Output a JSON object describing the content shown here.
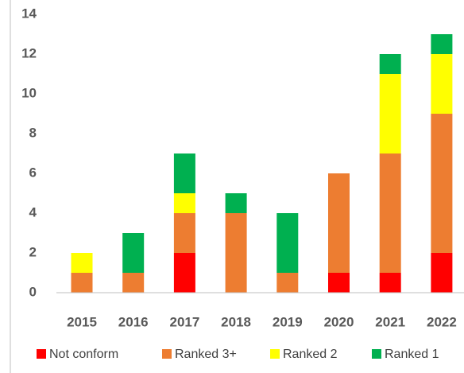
{
  "chart_data": {
    "type": "stacked_bar",
    "categories": [
      "2015",
      "2016",
      "2017",
      "2018",
      "2019",
      "2020",
      "2021",
      "2022"
    ],
    "series": [
      {
        "name": "Not conform",
        "color": "#ff0000",
        "values": [
          0,
          0,
          2,
          0,
          0,
          1,
          1,
          2
        ]
      },
      {
        "name": "Ranked 3+",
        "color": "#ed7d31",
        "values": [
          1,
          1,
          2,
          4,
          1,
          5,
          6,
          7
        ]
      },
      {
        "name": "Ranked 2",
        "color": "#ffff00",
        "values": [
          1,
          0,
          1,
          0,
          0,
          0,
          4,
          3
        ]
      },
      {
        "name": "Ranked 1",
        "color": "#00b050",
        "values": [
          0,
          2,
          2,
          1,
          3,
          0,
          1,
          1
        ]
      }
    ],
    "ylim": [
      0,
      14
    ],
    "yticks": [
      0,
      2,
      4,
      6,
      8,
      10,
      12,
      14
    ],
    "grid": false,
    "legend": "bottom"
  }
}
